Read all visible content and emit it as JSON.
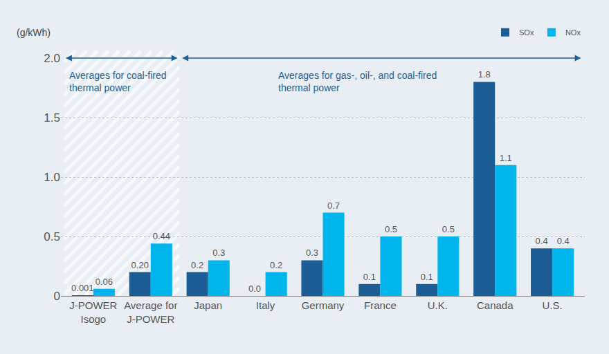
{
  "chart_data": {
    "type": "bar",
    "ylabel": "(g/kWh)",
    "categories": [
      "J-POWER\nIsogo",
      "Average for\nJ-POWER",
      "Japan",
      "Italy",
      "Germany",
      "France",
      "U.K.",
      "Canada",
      "U.S."
    ],
    "series": [
      {
        "name": "SOx",
        "color": "#1b5d94",
        "values": [
          0.001,
          0.2,
          0.2,
          0.0,
          0.3,
          0.1,
          0.1,
          1.8,
          0.4
        ],
        "value_labels": [
          "0.001",
          "0.20",
          "0.2",
          "0.0",
          "0.3",
          "0.1",
          "0.1",
          "1.8",
          "0.4"
        ]
      },
      {
        "name": "NOx",
        "color": "#00b4ec",
        "values": [
          0.06,
          0.44,
          0.3,
          0.2,
          0.7,
          0.5,
          0.5,
          1.1,
          0.4
        ],
        "value_labels": [
          "0.06",
          "0.44",
          "0.3",
          "0.2",
          "0.7",
          "0.5",
          "0.5",
          "1.1",
          "0.4"
        ]
      }
    ],
    "annotations": [
      {
        "text": "Averages for coal-fired\nthermal power"
      },
      {
        "text": "Averages for gas-, oil-, and coal-fired\nthermal power"
      }
    ],
    "ylim": [
      0,
      2.0
    ],
    "yticks": [
      0,
      0.5,
      {
        "value": 1,
        "label": "1.0"
      },
      1.5,
      {
        "value": 2,
        "label": "2.0"
      }
    ],
    "grid": true,
    "legend": "top right",
    "data_labels": true
  }
}
